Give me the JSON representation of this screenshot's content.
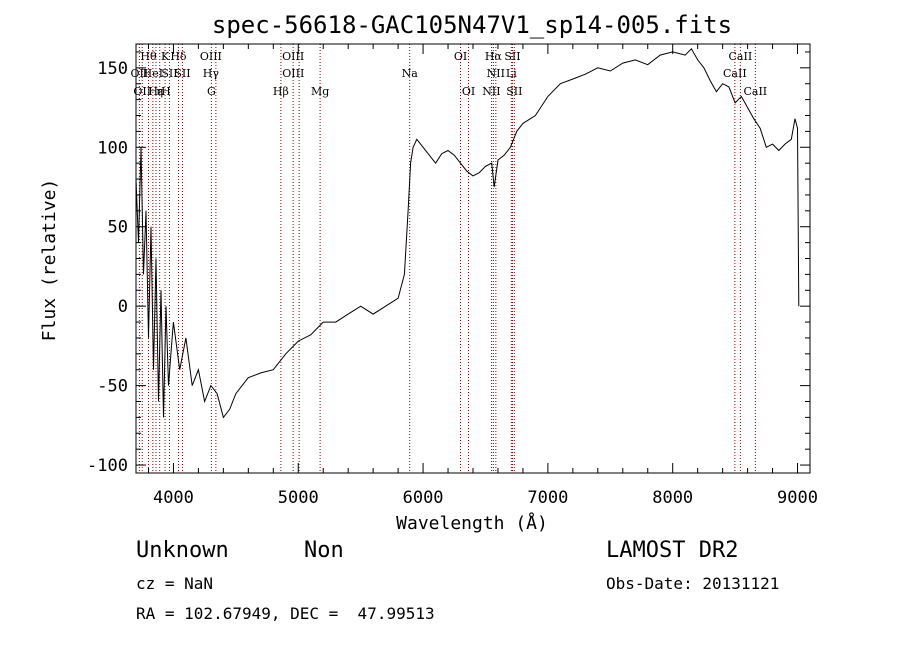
{
  "chart_data": {
    "type": "line",
    "title": "spec-56618-GAC105N47V1_sp14-005.fits",
    "xlabel": "Wavelength (Å)",
    "ylabel": "Flux (relative)",
    "xlim": [
      3700,
      9100
    ],
    "ylim": [
      -105,
      165
    ],
    "xticks": [
      4000,
      5000,
      6000,
      7000,
      8000,
      9000
    ],
    "yticks": [
      -100,
      -50,
      0,
      50,
      100,
      150
    ],
    "grid": false,
    "line_color": "#000000",
    "marker_color": "#8b0000",
    "series": [
      {
        "x": [
          3700,
          3720,
          3740,
          3760,
          3780,
          3800,
          3820,
          3840,
          3860,
          3880,
          3900,
          3920,
          3940,
          3960,
          3980,
          4000,
          4050,
          4100,
          4150,
          4200,
          4250,
          4300,
          4350,
          4400,
          4450,
          4500,
          4550,
          4600,
          4700,
          4800,
          4900,
          5000,
          5100,
          5200,
          5300,
          5400,
          5500,
          5600,
          5700,
          5800,
          5850,
          5880,
          5900,
          5920,
          5950,
          6000,
          6050,
          6100,
          6150,
          6200,
          6250,
          6300,
          6350,
          6400,
          6450,
          6500,
          6550,
          6570,
          6600,
          6650,
          6700,
          6750,
          6800,
          6900,
          7000,
          7100,
          7200,
          7300,
          7400,
          7500,
          7600,
          7700,
          7800,
          7900,
          8000,
          8100,
          8150,
          8200,
          8250,
          8300,
          8350,
          8400,
          8450,
          8500,
          8550,
          8600,
          8650,
          8700,
          8750,
          8800,
          8850,
          8900,
          8950,
          8980,
          9000,
          9010
        ],
        "y": [
          80,
          40,
          100,
          20,
          60,
          -20,
          50,
          -40,
          30,
          -60,
          10,
          -70,
          0,
          -50,
          -30,
          -10,
          -40,
          -20,
          -50,
          -40,
          -60,
          -50,
          -55,
          -70,
          -65,
          -55,
          -50,
          -45,
          -42,
          -40,
          -30,
          -22,
          -18,
          -10,
          -10,
          -5,
          0,
          -5,
          0,
          5,
          20,
          60,
          90,
          100,
          105,
          100,
          95,
          90,
          96,
          98,
          95,
          90,
          85,
          82,
          84,
          88,
          90,
          75,
          92,
          95,
          100,
          110,
          115,
          120,
          132,
          140,
          143,
          146,
          150,
          148,
          153,
          155,
          152,
          158,
          160,
          158,
          162,
          155,
          150,
          142,
          135,
          140,
          138,
          128,
          132,
          125,
          118,
          112,
          100,
          102,
          98,
          102,
          105,
          118,
          112,
          0
        ]
      }
    ],
    "line_labels": [
      {
        "wave": 3727,
        "text": "OII",
        "row": 2
      },
      {
        "wave": 3750,
        "text": "OII",
        "row": 3
      },
      {
        "wave": 3800,
        "text": "Hθ",
        "row": 1
      },
      {
        "wave": 3835,
        "text": "HeI",
        "row": 2
      },
      {
        "wave": 3860,
        "text": "Hε",
        "row": 3
      },
      {
        "wave": 3890,
        "text": "η",
        "row": 3
      },
      {
        "wave": 3933,
        "text": "K",
        "row": 1
      },
      {
        "wave": 3940,
        "text": "H",
        "row": 3
      },
      {
        "wave": 3968,
        "text": "SII",
        "row": 2
      },
      {
        "wave": 4040,
        "text": "Hδ",
        "row": 1
      },
      {
        "wave": 4072,
        "text": "SII",
        "row": 2
      },
      {
        "wave": 4300,
        "text": "OIII",
        "row": 1
      },
      {
        "wave": 4300,
        "text": "Hγ",
        "row": 2
      },
      {
        "wave": 4304,
        "text": "G",
        "row": 3
      },
      {
        "wave": 4861,
        "text": "Hβ",
        "row": 3
      },
      {
        "wave": 4959,
        "text": "OIII",
        "row": 1
      },
      {
        "wave": 4960,
        "text": "OIII",
        "row": 2
      },
      {
        "wave": 5175,
        "text": "Mg",
        "row": 3
      },
      {
        "wave": 5893,
        "text": "Na",
        "row": 2
      },
      {
        "wave": 6300,
        "text": "OI",
        "row": 1
      },
      {
        "wave": 6364,
        "text": "OI",
        "row": 3
      },
      {
        "wave": 6563,
        "text": "Hα",
        "row": 1
      },
      {
        "wave": 6583,
        "text": "NII",
        "row": 2
      },
      {
        "wave": 6548,
        "text": "NII",
        "row": 3
      },
      {
        "wave": 6716,
        "text": "SII",
        "row": 1
      },
      {
        "wave": 6707,
        "text": "Li",
        "row": 2
      },
      {
        "wave": 6731,
        "text": "SII",
        "row": 3
      },
      {
        "wave": 8542,
        "text": "CaII",
        "row": 1
      },
      {
        "wave": 8498,
        "text": "CaII",
        "row": 2
      },
      {
        "wave": 8662,
        "text": "CaII",
        "row": 3
      }
    ],
    "marker_waves": [
      3727,
      3750,
      3800,
      3835,
      3860,
      3890,
      3933,
      3968,
      4040,
      4072,
      4304,
      4340,
      4861,
      4959,
      5007,
      5175,
      5893,
      6300,
      6364,
      6548,
      6563,
      6583,
      6707,
      6716,
      6731,
      8498,
      8542,
      8662
    ]
  },
  "info": {
    "object_class": "Unknown",
    "object_subclass": "Non",
    "survey": "LAMOST DR2",
    "redshift": "cz = NaN",
    "obs_date": "Obs-Date: 20131121",
    "coords": "RA = 102.67949, DEC =  47.99513"
  }
}
